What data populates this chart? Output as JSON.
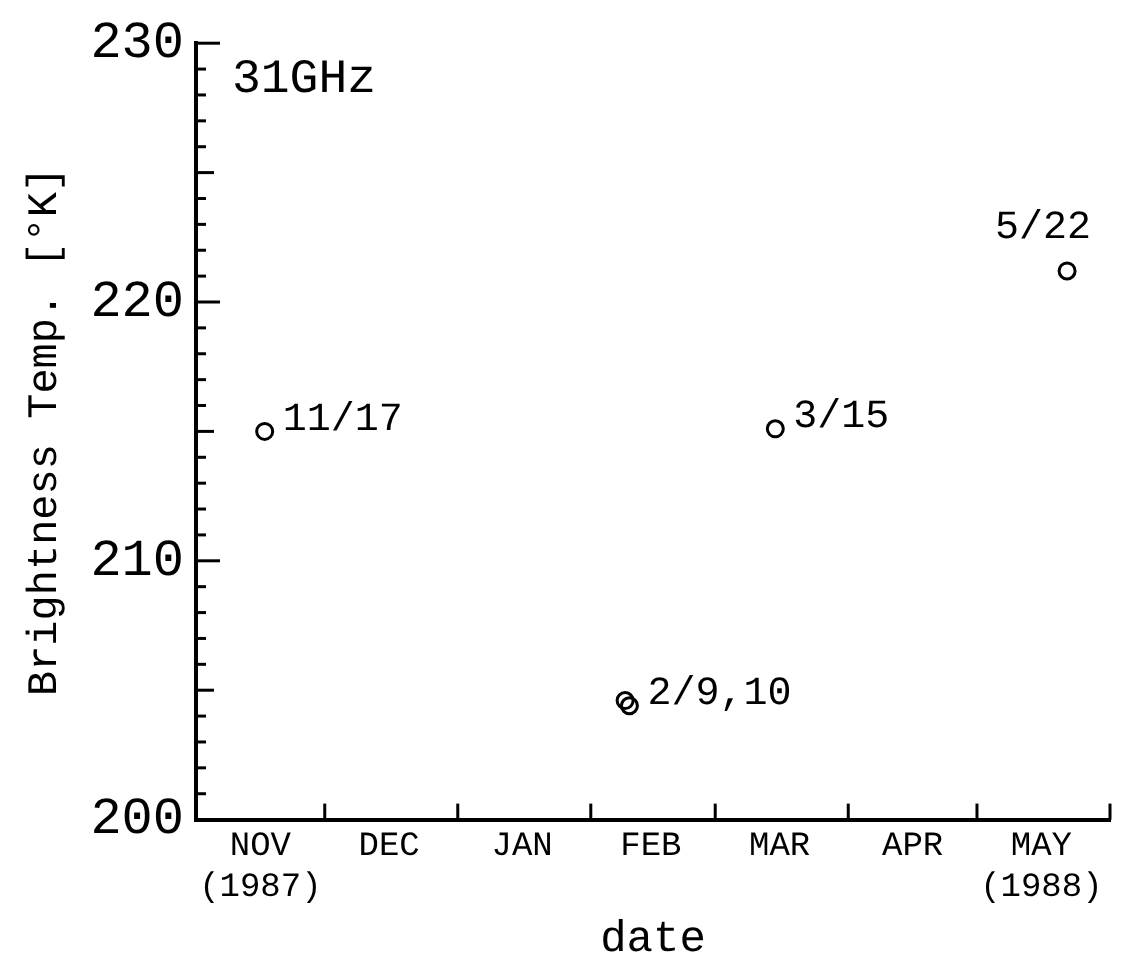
{
  "chart_data": {
    "type": "scatter",
    "title": "31GHz",
    "xlabel": "date",
    "ylabel": "Brightness Temp. [°K]",
    "x": [
      "1987-11-17",
      "1988-02-09",
      "1988-02-10",
      "1988-03-15",
      "1988-05-22"
    ],
    "series": [
      {
        "color": "#000000",
        "values": [
          215,
          204.6,
          204.4,
          215.1,
          221.2
        ]
      }
    ],
    "xlim": [
      "1987-11-01",
      "1988-06-01"
    ],
    "xticks": [
      {
        "value": "1987-11-01",
        "label": null
      },
      {
        "value": "1987-11-16",
        "label": "NOV\n(1987)"
      },
      {
        "value": "1987-12-01",
        "label": null
      },
      {
        "value": "1987-12-16",
        "label": "DEC"
      },
      {
        "value": "1988-01-01",
        "label": null
      },
      {
        "value": "1988-01-16",
        "label": "JAN"
      },
      {
        "value": "1988-02-01",
        "label": null
      },
      {
        "value": "1988-02-15",
        "label": "FEB"
      },
      {
        "value": "1988-03-01",
        "label": null
      },
      {
        "value": "1988-03-16",
        "label": "MAR"
      },
      {
        "value": "1988-04-01",
        "label": null
      },
      {
        "value": "1988-04-16",
        "label": "APR"
      },
      {
        "value": "1988-05-01",
        "label": null
      },
      {
        "value": "1988-05-16",
        "label": "MAY\n(1988)"
      },
      {
        "value": "1988-06-01",
        "label": null
      }
    ],
    "ylim": [
      200,
      230
    ],
    "yticks": [
      200,
      {
        "value": 201,
        "label": null
      },
      {
        "value": 202,
        "label": null
      },
      {
        "value": 203,
        "label": null
      },
      {
        "value": 204,
        "label": null
      },
      {
        "value": 205,
        "label": null
      },
      {
        "value": 206,
        "label": null
      },
      {
        "value": 207,
        "label": null
      },
      {
        "value": 208,
        "label": null
      },
      {
        "value": 209,
        "label": null
      },
      210,
      {
        "value": 211,
        "label": null
      },
      {
        "value": 212,
        "label": null
      },
      {
        "value": 213,
        "label": null
      },
      {
        "value": 214,
        "label": null
      },
      {
        "value": 215,
        "label": null
      },
      {
        "value": 216,
        "label": null
      },
      {
        "value": 217,
        "label": null
      },
      {
        "value": 218,
        "label": null
      },
      {
        "value": 219,
        "label": null
      },
      220,
      {
        "value": 221,
        "label": null
      },
      {
        "value": 222,
        "label": null
      },
      {
        "value": 223,
        "label": null
      },
      {
        "value": 224,
        "label": null
      },
      {
        "value": 225,
        "label": null
      },
      {
        "value": 226,
        "label": null
      },
      {
        "value": 227,
        "label": null
      },
      {
        "value": 228,
        "label": null
      },
      {
        "value": 229,
        "label": null
      },
      230
    ],
    "annotations": [
      {
        "text": "11/17",
        "x": "1987-11-17",
        "y": 215
      },
      {
        "text": "2/9,10",
        "x": "1988-02-10",
        "y": 204.4
      },
      {
        "text": "3/15",
        "x": "1988-03-15",
        "y": 215.1
      },
      {
        "text": "5/22",
        "x": "1988-05-22",
        "y": 221.2
      }
    ],
    "marker": "circle",
    "grid": false,
    "legend": false
  }
}
